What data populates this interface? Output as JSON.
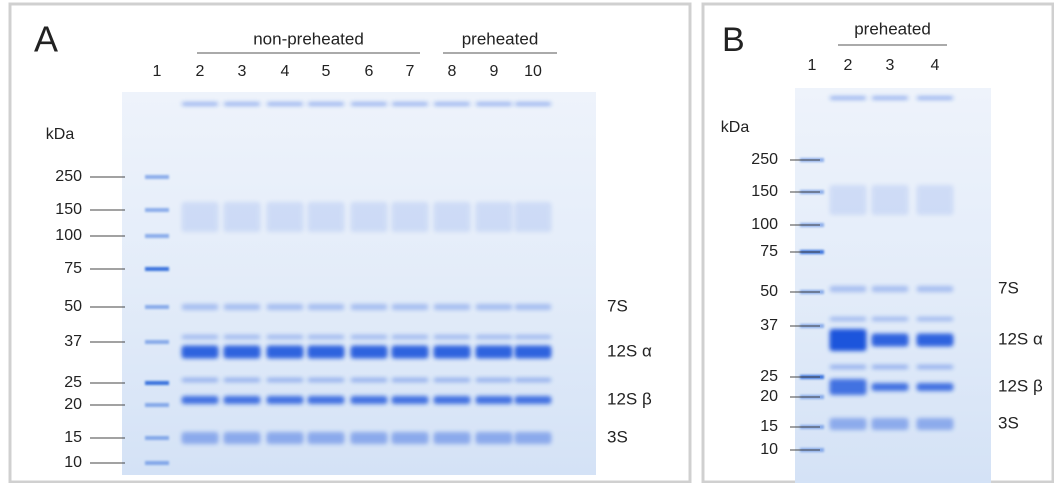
{
  "panel_a": {
    "label": "A",
    "groups": [
      "non-preheated",
      "preheated"
    ],
    "lanes": [
      "1",
      "2",
      "3",
      "4",
      "5",
      "6",
      "7",
      "8",
      "9",
      "10"
    ],
    "unit": "kDa",
    "markers": [
      "250",
      "150",
      "100",
      "75",
      "50",
      "37",
      "25",
      "20",
      "15",
      "10"
    ],
    "bands": [
      "7S",
      "12S α",
      "12S β",
      "3S"
    ]
  },
  "panel_b": {
    "label": "B",
    "groups": [
      "preheated"
    ],
    "lanes": [
      "1",
      "2",
      "3",
      "4"
    ],
    "unit": "kDa",
    "markers": [
      "250",
      "150",
      "100",
      "75",
      "50",
      "37",
      "25",
      "20",
      "15",
      "10"
    ],
    "bands": [
      "7S",
      "12S α",
      "12S β",
      "3S"
    ]
  }
}
